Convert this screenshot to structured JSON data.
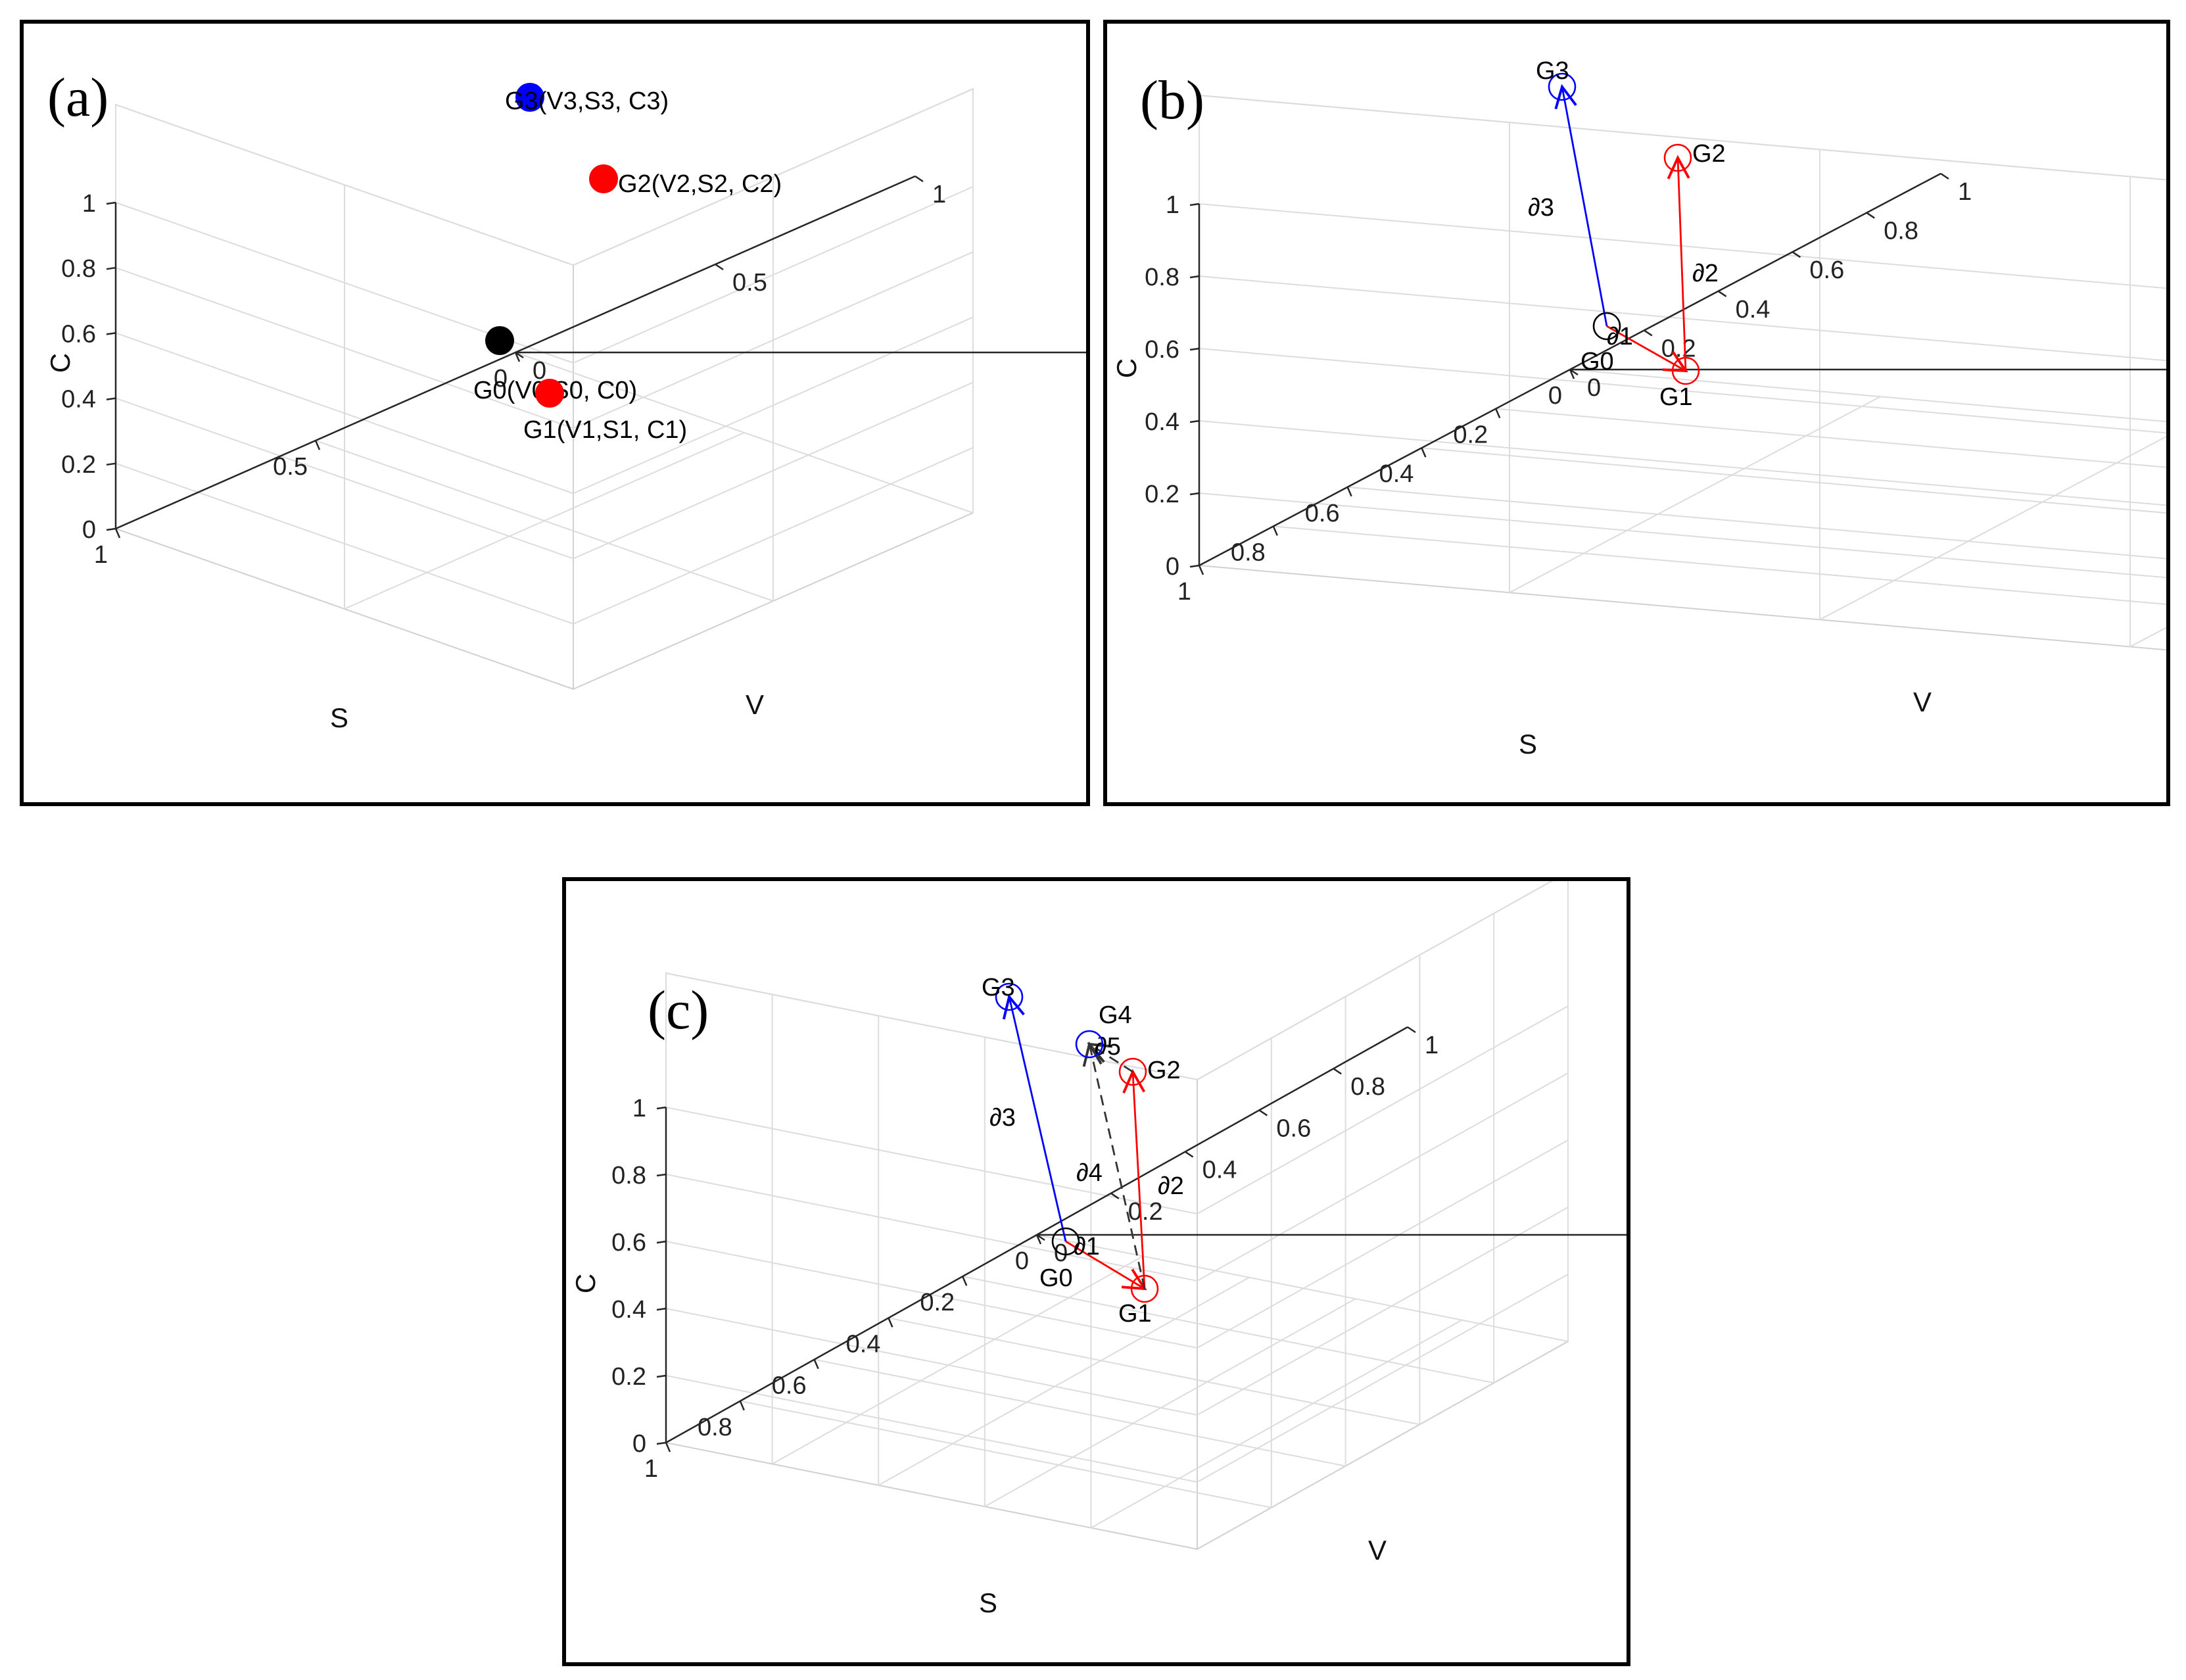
{
  "chart_data": [
    {
      "type": "scatter3d",
      "panel_label": "(a)",
      "axes": {
        "x": {
          "name": "V",
          "ticks": [
            "0",
            "0.5",
            "1"
          ]
        },
        "y": {
          "name": "S",
          "ticks": [
            "0",
            "0.5",
            "1"
          ]
        },
        "z": {
          "name": "C",
          "ticks": [
            "0",
            "0.2",
            "0.4",
            "0.6",
            "0.8",
            "1"
          ]
        }
      },
      "points": [
        {
          "id": "G0",
          "label": "G0(V0,S0, C0)",
          "color": "#000000",
          "style": "filled"
        },
        {
          "id": "G1",
          "label": "G1(V1,S1, C1)",
          "color": "#ff0000",
          "style": "filled"
        },
        {
          "id": "G2",
          "label": "G2(V2,S2, C2)",
          "color": "#ff0000",
          "style": "filled"
        },
        {
          "id": "G3",
          "label": "G3(V3,S3, C3)",
          "color": "#0000ff",
          "style": "filled"
        }
      ]
    },
    {
      "type": "vector3d",
      "panel_label": "(b)",
      "axes": {
        "x": {
          "name": "V",
          "ticks": [
            "0",
            "0.2",
            "0.4",
            "0.6",
            "0.8",
            "1"
          ]
        },
        "y": {
          "name": "S",
          "ticks": [
            "0",
            "0.2",
            "0.4",
            "0.6",
            "0.8",
            "1"
          ]
        },
        "z": {
          "name": "C",
          "ticks": [
            "0",
            "0.2",
            "0.4",
            "0.6",
            "0.8",
            "1"
          ]
        }
      },
      "points": [
        {
          "id": "G0",
          "label": "G0",
          "color": "#000000",
          "style": "open"
        },
        {
          "id": "G1",
          "label": "G1",
          "color": "#ff0000",
          "style": "open"
        },
        {
          "id": "G2",
          "label": "G2",
          "color": "#ff0000",
          "style": "open"
        },
        {
          "id": "G3",
          "label": "G3",
          "color": "#0000ff",
          "style": "open"
        }
      ],
      "vectors": [
        {
          "label": "∂1",
          "from": "G0",
          "to": "G1",
          "color": "#ff0000",
          "dash": false
        },
        {
          "label": "∂2",
          "from": "G1",
          "to": "G2",
          "color": "#ff0000",
          "dash": false
        },
        {
          "label": "∂3",
          "from": "G0",
          "to": "G3",
          "color": "#0000ff",
          "dash": false
        }
      ]
    },
    {
      "type": "vector3d",
      "panel_label": "(c)",
      "axes": {
        "x": {
          "name": "V",
          "ticks": [
            "0",
            "0.2",
            "0.4",
            "0.6",
            "0.8",
            "1"
          ]
        },
        "y": {
          "name": "S",
          "ticks": [
            "0",
            "0.2",
            "0.4",
            "0.6",
            "0.8",
            "1"
          ]
        },
        "z": {
          "name": "C",
          "ticks": [
            "0",
            "0.2",
            "0.4",
            "0.6",
            "0.8",
            "1"
          ]
        }
      },
      "points": [
        {
          "id": "G0",
          "label": "G0",
          "color": "#000000",
          "style": "open"
        },
        {
          "id": "G1",
          "label": "G1",
          "color": "#ff0000",
          "style": "open"
        },
        {
          "id": "G2",
          "label": "G2",
          "color": "#ff0000",
          "style": "open"
        },
        {
          "id": "G3",
          "label": "G3",
          "color": "#0000ff",
          "style": "open"
        },
        {
          "id": "G4",
          "label": "G4",
          "color": "#0000ff",
          "style": "open"
        }
      ],
      "vectors": [
        {
          "label": "∂1",
          "from": "G0",
          "to": "G1",
          "color": "#ff0000",
          "dash": false
        },
        {
          "label": "∂2",
          "from": "G1",
          "to": "G2",
          "color": "#ff0000",
          "dash": false
        },
        {
          "label": "∂3",
          "from": "G0",
          "to": "G3",
          "color": "#0000ff",
          "dash": false
        },
        {
          "label": "∂4",
          "from": "G1",
          "to": "G4",
          "color": "#333333",
          "dash": true
        },
        {
          "label": "∂5",
          "from": "G2",
          "to": "G4",
          "color": "#333333",
          "dash": true
        }
      ]
    }
  ]
}
